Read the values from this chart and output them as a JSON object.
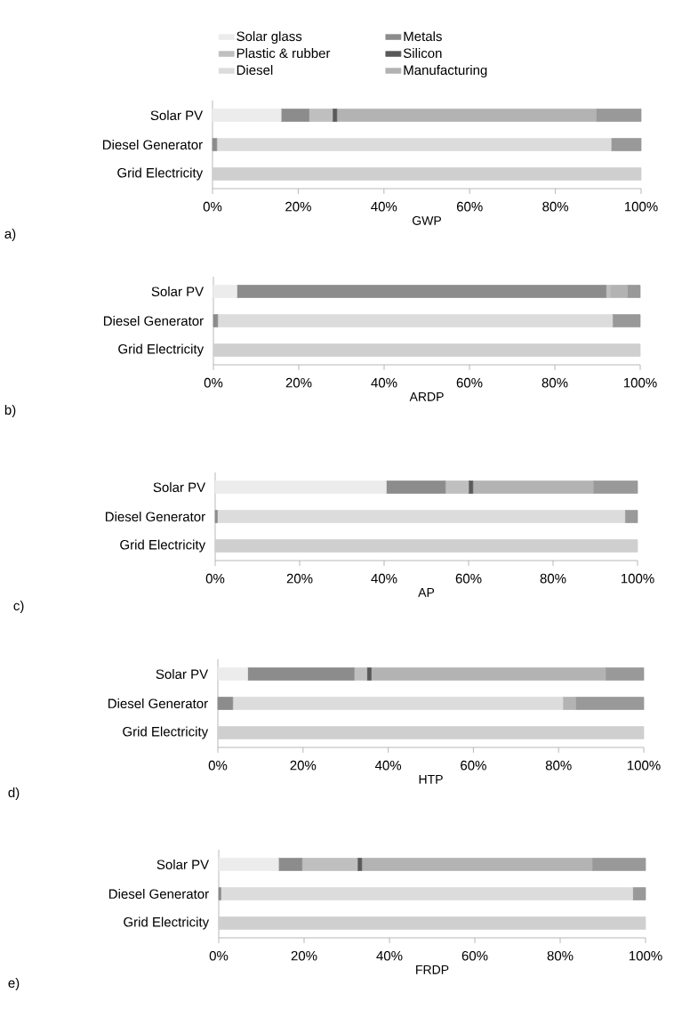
{
  "chart_data": [
    {
      "type": "bar",
      "orientation": "horizontal",
      "stacked": true,
      "legend": "top",
      "xlabel": "GWP",
      "annotations": [
        "a)"
      ],
      "categories": [
        "Solar PV",
        "Diesel Generator",
        "Grid Electricity"
      ],
      "xlim": [
        0,
        100
      ],
      "xticks": [
        {
          "value": 0,
          "label": "0%"
        },
        {
          "value": 20,
          "label": "20%"
        },
        {
          "value": 40,
          "label": "40%"
        },
        {
          "value": 60,
          "label": "60%"
        },
        {
          "value": 80,
          "label": "80%"
        },
        {
          "value": 100,
          "label": "100%"
        }
      ],
      "series": [
        {
          "name": "Solar glass",
          "color": "#ececec",
          "values": [
            16,
            0,
            0
          ]
        },
        {
          "name": "Metals",
          "color": "#8c8c8c",
          "values": [
            6.5,
            1,
            0
          ]
        },
        {
          "name": "Plastic & rubber",
          "color": "#bfbfbf",
          "values": [
            5.5,
            0,
            0
          ]
        },
        {
          "name": "Silicon",
          "color": "#595959",
          "values": [
            1,
            0,
            0
          ]
        },
        {
          "name": "Diesel",
          "color": "#dcdcdc",
          "values": [
            0,
            92,
            0
          ]
        },
        {
          "name": "Manufacturing",
          "color": "#b3b3b3",
          "values": [
            60.5,
            0,
            0
          ]
        },
        {
          "color": "#999999",
          "values": [
            10.5,
            7,
            0
          ]
        },
        {
          "color": "#cfcfcf",
          "values": [
            0,
            0,
            100
          ]
        }
      ]
    },
    {
      "type": "bar",
      "orientation": "horizontal",
      "stacked": true,
      "xlabel": "ARDP",
      "annotations": [
        "b)"
      ],
      "categories": [
        "Solar PV",
        "Diesel Generator",
        "Grid Electricity"
      ],
      "xlim": [
        0,
        100
      ],
      "xticks": [
        {
          "value": 0,
          "label": "0%"
        },
        {
          "value": 20,
          "label": "20%"
        },
        {
          "value": 40,
          "label": "40%"
        },
        {
          "value": 60,
          "label": "60%"
        },
        {
          "value": 80,
          "label": "80%"
        },
        {
          "value": 100,
          "label": "100%"
        }
      ],
      "series": [
        {
          "color": "#ececec",
          "values": [
            5.5,
            0,
            0
          ]
        },
        {
          "color": "#8c8c8c",
          "values": [
            86.5,
            1,
            0
          ]
        },
        {
          "color": "#bfbfbf",
          "values": [
            1,
            0,
            0
          ]
        },
        {
          "color": "#595959",
          "values": [
            0,
            0,
            0
          ]
        },
        {
          "color": "#dcdcdc",
          "values": [
            0,
            92.5,
            0
          ]
        },
        {
          "color": "#b3b3b3",
          "values": [
            4,
            0,
            0
          ]
        },
        {
          "color": "#999999",
          "values": [
            3,
            6.5,
            0
          ]
        },
        {
          "color": "#cfcfcf",
          "values": [
            0,
            0,
            100
          ]
        }
      ]
    },
    {
      "type": "bar",
      "orientation": "horizontal",
      "stacked": true,
      "xlabel": "AP",
      "annotations": [
        "c)"
      ],
      "categories": [
        "Solar PV",
        "Diesel Generator",
        "Grid Electricity"
      ],
      "xlim": [
        0,
        100
      ],
      "xticks": [
        {
          "value": 0,
          "label": "0%"
        },
        {
          "value": 20,
          "label": "20%"
        },
        {
          "value": 40,
          "label": "40%"
        },
        {
          "value": 60,
          "label": "60%"
        },
        {
          "value": 80,
          "label": "80%"
        },
        {
          "value": 100,
          "label": "100%"
        }
      ],
      "series": [
        {
          "color": "#ececec",
          "values": [
            40.5,
            0,
            0
          ]
        },
        {
          "color": "#8c8c8c",
          "values": [
            14,
            0.5,
            0
          ]
        },
        {
          "color": "#bfbfbf",
          "values": [
            5.5,
            0,
            0
          ]
        },
        {
          "color": "#595959",
          "values": [
            1,
            0,
            0
          ]
        },
        {
          "color": "#dcdcdc",
          "values": [
            0,
            96.5,
            0
          ]
        },
        {
          "color": "#b3b3b3",
          "values": [
            28.5,
            0,
            0
          ]
        },
        {
          "color": "#999999",
          "values": [
            10.5,
            3,
            0
          ]
        },
        {
          "color": "#cfcfcf",
          "values": [
            0,
            0,
            100
          ]
        }
      ]
    },
    {
      "type": "bar",
      "orientation": "horizontal",
      "stacked": true,
      "xlabel": "HTP",
      "annotations": [
        "d)"
      ],
      "categories": [
        "Solar PV",
        "Diesel Generator",
        "Grid Electricity"
      ],
      "xlim": [
        0,
        100
      ],
      "xticks": [
        {
          "value": 0,
          "label": "0%"
        },
        {
          "value": 20,
          "label": "20%"
        },
        {
          "value": 40,
          "label": "40%"
        },
        {
          "value": 60,
          "label": "60%"
        },
        {
          "value": 80,
          "label": "80%"
        },
        {
          "value": 100,
          "label": "100%"
        }
      ],
      "series": [
        {
          "color": "#ececec",
          "values": [
            7,
            0,
            0
          ]
        },
        {
          "color": "#8c8c8c",
          "values": [
            25,
            3.5,
            0
          ]
        },
        {
          "color": "#bfbfbf",
          "values": [
            3,
            0,
            0
          ]
        },
        {
          "color": "#595959",
          "values": [
            1,
            0,
            0
          ]
        },
        {
          "color": "#dcdcdc",
          "values": [
            0,
            77.5,
            0
          ]
        },
        {
          "color": "#b3b3b3",
          "values": [
            55,
            3,
            0
          ]
        },
        {
          "color": "#999999",
          "values": [
            9,
            16,
            0
          ]
        },
        {
          "color": "#cfcfcf",
          "values": [
            0,
            0,
            100
          ]
        }
      ]
    },
    {
      "type": "bar",
      "orientation": "horizontal",
      "stacked": true,
      "xlabel": "FRDP",
      "annotations": [
        "e)"
      ],
      "categories": [
        "Solar PV",
        "Diesel Generator",
        "Grid Electricity"
      ],
      "xlim": [
        0,
        100
      ],
      "xticks": [
        {
          "value": 0,
          "label": "0%"
        },
        {
          "value": 20,
          "label": "20%"
        },
        {
          "value": 40,
          "label": "40%"
        },
        {
          "value": 60,
          "label": "60%"
        },
        {
          "value": 80,
          "label": "80%"
        },
        {
          "value": 100,
          "label": "100%"
        }
      ],
      "series": [
        {
          "color": "#ececec",
          "values": [
            14,
            0,
            0
          ]
        },
        {
          "color": "#8c8c8c",
          "values": [
            5.5,
            0.5,
            0
          ]
        },
        {
          "color": "#bfbfbf",
          "values": [
            13,
            0,
            0
          ]
        },
        {
          "color": "#595959",
          "values": [
            1,
            0,
            0
          ]
        },
        {
          "color": "#dcdcdc",
          "values": [
            0,
            96.5,
            0
          ]
        },
        {
          "color": "#b3b3b3",
          "values": [
            54,
            0,
            0
          ]
        },
        {
          "color": "#999999",
          "values": [
            12.5,
            3,
            0
          ]
        },
        {
          "color": "#cfcfcf",
          "values": [
            0,
            0,
            100
          ]
        }
      ]
    }
  ]
}
